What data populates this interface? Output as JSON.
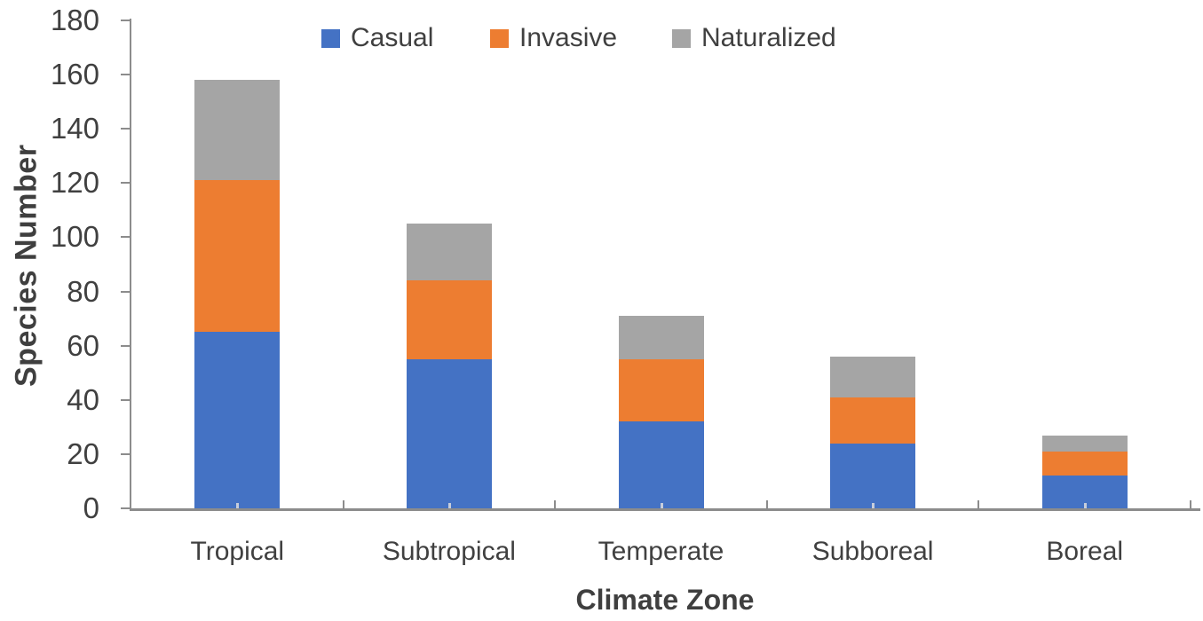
{
  "chart_data": {
    "type": "bar",
    "subtype": "stacked-vertical",
    "title": "",
    "xlabel": "Climate Zone",
    "ylabel": "Species Number",
    "ylim": [
      0,
      180
    ],
    "ytick_step": 20,
    "yticks": [
      0,
      20,
      40,
      60,
      80,
      100,
      120,
      140,
      160,
      180
    ],
    "ytick_labels": [
      "0",
      "20",
      "40",
      "60",
      "80",
      "100",
      "120",
      "140",
      "160",
      "180"
    ],
    "grid": false,
    "legend_position": "top",
    "categories": [
      "Tropical",
      "Subtropical",
      "Temperate",
      "Subboreal",
      "Boreal"
    ],
    "series": [
      {
        "name": "Casual",
        "color": "#4472C4",
        "values": [
          65,
          55,
          32,
          24,
          12
        ]
      },
      {
        "name": "Invasive",
        "color": "#ED7D31",
        "values": [
          56,
          29,
          23,
          17,
          9
        ]
      },
      {
        "name": "Naturalized",
        "color": "#A5A5A5",
        "values": [
          37,
          21,
          16,
          15,
          6
        ]
      }
    ],
    "stack_totals": [
      158,
      105,
      71,
      56,
      27
    ],
    "colors": {
      "axis_line": "#8c8c8c",
      "text": "#404040",
      "casual": "#4472C4",
      "invasive": "#ED7D31",
      "naturalized": "#A5A5A5"
    }
  }
}
